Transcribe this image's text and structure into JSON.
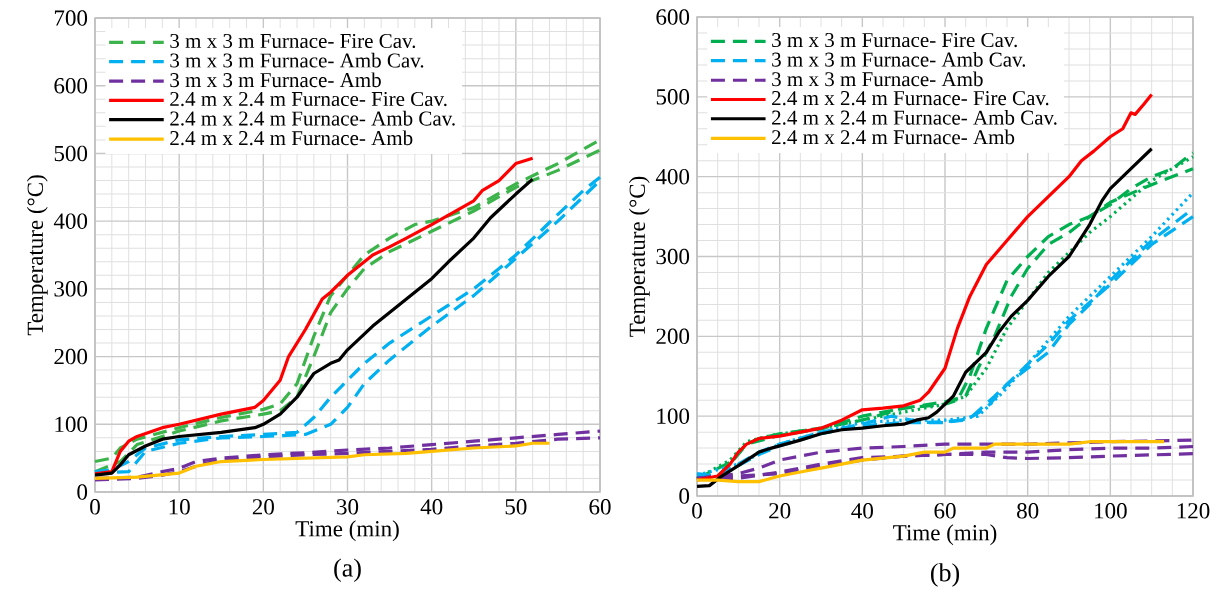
{
  "chart_data": [
    {
      "type": "line",
      "xlabel": "Time (min)",
      "ylabel": "Temperature (°C)",
      "xlim": [
        0,
        60
      ],
      "ylim": [
        0,
        700
      ],
      "xticks": [
        0,
        10,
        20,
        30,
        40,
        50,
        60
      ],
      "yticks": [
        0,
        100,
        200,
        300,
        400,
        500,
        600,
        700
      ],
      "grid": true,
      "legend": "top left",
      "annotations": [
        "(a)"
      ],
      "series": [
        {
          "name": "3 m x 3 m Furnace- Fire Cav.",
          "color": "#3cb44b",
          "line_style": "dashed",
          "x": [
            0,
            2,
            3,
            5,
            10,
            15,
            20,
            22,
            24,
            26,
            28,
            30,
            32,
            35,
            38,
            40,
            45,
            50,
            55,
            60
          ],
          "values": [
            45,
            50,
            65,
            78,
            95,
            110,
            122,
            130,
            160,
            230,
            290,
            320,
            350,
            375,
            395,
            400,
            420,
            455,
            485,
            520
          ]
        },
        {
          "color": "#3cb44b",
          "line_style": "dashed",
          "x": [
            0,
            3,
            5,
            10,
            15,
            20,
            22,
            24,
            26,
            28,
            30,
            32,
            35,
            40,
            45,
            50,
            55,
            60
          ],
          "values": [
            30,
            45,
            70,
            90,
            105,
            115,
            120,
            140,
            200,
            265,
            300,
            330,
            355,
            385,
            415,
            450,
            475,
            505
          ]
        },
        {
          "name": "3 m x 3 m Furnace- Amb Cav.",
          "color": "#00b0f0",
          "line_style": "dashed",
          "x": [
            0,
            2,
            4,
            6,
            10,
            15,
            20,
            24,
            26,
            28,
            30,
            32,
            35,
            40,
            45,
            50,
            55,
            58,
            60
          ],
          "values": [
            30,
            33,
            45,
            65,
            77,
            82,
            85,
            88,
            110,
            140,
            165,
            190,
            220,
            260,
            300,
            350,
            410,
            445,
            465
          ]
        },
        {
          "color": "#00b0f0",
          "line_style": "dashed",
          "x": [
            0,
            4,
            6,
            10,
            15,
            20,
            25,
            28,
            30,
            32,
            35,
            40,
            45,
            50,
            55,
            60
          ],
          "values": [
            28,
            30,
            60,
            72,
            80,
            82,
            85,
            100,
            125,
            160,
            195,
            245,
            290,
            345,
            400,
            460
          ]
        },
        {
          "name": "3 m x 3 m Furnace- Amb",
          "color": "#7030a0",
          "line_style": "dashed",
          "x": [
            0,
            5,
            8,
            10,
            12,
            15,
            20,
            25,
            30,
            35,
            40,
            45,
            50,
            55,
            60
          ],
          "values": [
            20,
            22,
            30,
            35,
            45,
            50,
            55,
            58,
            62,
            65,
            70,
            75,
            80,
            85,
            90
          ]
        },
        {
          "color": "#7030a0",
          "line_style": "dashed",
          "x": [
            0,
            5,
            8,
            10,
            13,
            15,
            20,
            25,
            30,
            35,
            40,
            45,
            50,
            55,
            60
          ],
          "values": [
            18,
            20,
            25,
            30,
            42,
            47,
            52,
            55,
            57,
            60,
            63,
            68,
            72,
            78,
            80
          ]
        },
        {
          "name": "2.4 m x 2.4 m Furnace- Fire Cav.",
          "color": "#ff0000",
          "line_style": "solid",
          "x": [
            0,
            2,
            3,
            4,
            5,
            8,
            10,
            15,
            19,
            20,
            22,
            23,
            25,
            27,
            28,
            30,
            33,
            35,
            37,
            40,
            45,
            46,
            48,
            50,
            52
          ],
          "values": [
            27,
            30,
            60,
            75,
            82,
            95,
            100,
            115,
            125,
            135,
            165,
            200,
            240,
            285,
            295,
            320,
            350,
            362,
            375,
            395,
            430,
            445,
            460,
            485,
            493
          ]
        },
        {
          "name": "2.4 m x 2.4 m Furnace- Amb Cav.",
          "color": "#000000",
          "line_style": "solid",
          "x": [
            0,
            2,
            3,
            4,
            6,
            8,
            10,
            15,
            19,
            20,
            22,
            24,
            26,
            28,
            29,
            30,
            33,
            35,
            37,
            40,
            42,
            45,
            47,
            50,
            52
          ],
          "values": [
            25,
            28,
            40,
            55,
            68,
            78,
            82,
            88,
            95,
            100,
            115,
            140,
            175,
            190,
            195,
            210,
            245,
            265,
            285,
            315,
            340,
            375,
            405,
            440,
            462
          ]
        },
        {
          "name": "2.4 m x 2.4 m Furnace- Amb",
          "color": "#ffc000",
          "line_style": "solid",
          "x": [
            0,
            5,
            10,
            12,
            15,
            20,
            25,
            30,
            32,
            37,
            40,
            45,
            50,
            52,
            54
          ],
          "values": [
            20,
            22,
            28,
            38,
            45,
            48,
            50,
            52,
            55,
            57,
            60,
            65,
            68,
            72,
            72
          ]
        }
      ]
    },
    {
      "type": "line",
      "xlabel": "Time (min)",
      "ylabel": "Temperature (°C)",
      "xlim": [
        0,
        120
      ],
      "ylim": [
        0,
        600
      ],
      "xticks": [
        0,
        20,
        40,
        60,
        80,
        100,
        120
      ],
      "yticks": [
        0,
        100,
        200,
        300,
        400,
        500,
        600
      ],
      "grid": true,
      "legend": "top left",
      "annotations": [
        "(b)"
      ],
      "series": [
        {
          "name": "3 m x 3 m Furnace- Fire Cav.",
          "color": "#00b050",
          "line_style": "dashed",
          "x": [
            0,
            5,
            8,
            12,
            15,
            20,
            30,
            40,
            50,
            60,
            63,
            66,
            70,
            75,
            80,
            85,
            90,
            95,
            100,
            105,
            110,
            115,
            120
          ],
          "values": [
            20,
            25,
            40,
            65,
            72,
            78,
            85,
            95,
            110,
            115,
            120,
            150,
            210,
            270,
            300,
            325,
            340,
            350,
            365,
            385,
            400,
            410,
            430
          ]
        },
        {
          "color": "#00b050",
          "line_style": "dashed",
          "x": [
            0,
            8,
            12,
            20,
            30,
            40,
            50,
            60,
            65,
            68,
            72,
            76,
            80,
            85,
            90,
            95,
            100,
            110,
            120
          ],
          "values": [
            22,
            42,
            65,
            76,
            84,
            100,
            110,
            118,
            125,
            160,
            200,
            250,
            285,
            315,
            330,
            350,
            368,
            390,
            410
          ]
        },
        {
          "color": "#00b050",
          "line_style": "dotted",
          "x": [
            0,
            8,
            12,
            18,
            30,
            45,
            60,
            65,
            70,
            75,
            80,
            85,
            90,
            95,
            100,
            110,
            120
          ],
          "values": [
            22,
            45,
            68,
            76,
            85,
            100,
            115,
            125,
            160,
            210,
            245,
            280,
            305,
            330,
            350,
            395,
            425
          ]
        },
        {
          "name": "3 m x 3 m Furnace- Amb Cav.",
          "color": "#00b0f0",
          "line_style": "dashed",
          "x": [
            0,
            5,
            10,
            15,
            20,
            30,
            40,
            47,
            55,
            60,
            65,
            70,
            75,
            80,
            85,
            90,
            95,
            100,
            105,
            110,
            120
          ],
          "values": [
            28,
            25,
            40,
            55,
            65,
            80,
            90,
            100,
            92,
            93,
            95,
            110,
            140,
            160,
            180,
            215,
            240,
            270,
            295,
            320,
            360
          ]
        },
        {
          "color": "#00b0f0",
          "line_style": "dashed",
          "x": [
            0,
            5,
            10,
            15,
            20,
            30,
            40,
            50,
            60,
            66,
            72,
            78,
            85,
            90,
            100,
            110,
            120
          ],
          "values": [
            25,
            24,
            38,
            52,
            63,
            78,
            88,
            92,
            92,
            97,
            125,
            155,
            190,
            220,
            265,
            315,
            350
          ]
        },
        {
          "color": "#00b0f0",
          "line_style": "dotted",
          "x": [
            0,
            10,
            20,
            30,
            40,
            50,
            60,
            68,
            74,
            80,
            90,
            100,
            105,
            110,
            120
          ],
          "values": [
            26,
            40,
            65,
            80,
            92,
            95,
            95,
            100,
            130,
            165,
            225,
            275,
            300,
            325,
            380
          ]
        },
        {
          "name": "3 m x 3 m Furnace- Amb",
          "color": "#7030a0",
          "line_style": "dashed",
          "x": [
            0,
            5,
            10,
            15,
            20,
            30,
            40,
            50,
            60,
            80,
            100,
            120
          ],
          "values": [
            22,
            25,
            28,
            35,
            45,
            55,
            60,
            62,
            65,
            65,
            68,
            70
          ]
        },
        {
          "color": "#7030a0",
          "line_style": "dashed",
          "x": [
            0,
            5,
            10,
            20,
            30,
            40,
            50,
            60,
            70,
            80,
            90,
            100,
            110,
            120
          ],
          "values": [
            22,
            25,
            25,
            28,
            37,
            45,
            50,
            52,
            55,
            55,
            58,
            60,
            60,
            62
          ]
        },
        {
          "color": "#7030a0",
          "line_style": "dashed",
          "x": [
            0,
            10,
            20,
            30,
            40,
            50,
            60,
            70,
            75,
            80,
            90,
            100,
            120
          ],
          "values": [
            22,
            22,
            30,
            40,
            48,
            50,
            52,
            52,
            48,
            47,
            48,
            50,
            53
          ]
        },
        {
          "name": "2.4 m x 2.4 m Furnace- Fire Cav.",
          "color": "#ff0000",
          "line_style": "solid",
          "x": [
            0,
            5,
            8,
            10,
            12,
            15,
            20,
            30,
            35,
            40,
            45,
            50,
            54,
            56,
            60,
            63,
            66,
            70,
            75,
            80,
            85,
            90,
            93,
            96,
            100,
            103,
            105,
            106,
            108,
            110
          ],
          "values": [
            20,
            25,
            40,
            55,
            65,
            72,
            75,
            85,
            95,
            108,
            110,
            113,
            120,
            130,
            160,
            210,
            250,
            290,
            320,
            350,
            375,
            400,
            420,
            432,
            450,
            460,
            480,
            478,
            490,
            503
          ]
        },
        {
          "name": "2.4 m x 2.4 m Furnace- Amb Cav.",
          "color": "#000000",
          "line_style": "solid",
          "x": [
            0,
            3,
            6,
            10,
            15,
            18,
            25,
            30,
            35,
            40,
            45,
            50,
            53,
            56,
            58,
            62,
            65,
            68,
            70,
            73,
            76,
            80,
            85,
            90,
            95,
            98,
            100,
            105,
            110
          ],
          "values": [
            12,
            13,
            25,
            38,
            55,
            60,
            70,
            78,
            83,
            85,
            88,
            90,
            95,
            98,
            105,
            125,
            155,
            170,
            180,
            205,
            225,
            245,
            275,
            300,
            340,
            370,
            385,
            410,
            435
          ]
        },
        {
          "name": "2.4 m x 2.4 m Furnace- Amb",
          "color": "#ffc000",
          "line_style": "solid",
          "x": [
            0,
            5,
            10,
            15,
            20,
            25,
            30,
            40,
            50,
            55,
            60,
            62,
            70,
            72,
            90,
            95,
            113
          ],
          "values": [
            20,
            20,
            18,
            18,
            25,
            30,
            35,
            45,
            50,
            55,
            55,
            60,
            60,
            65,
            65,
            68,
            68
          ]
        }
      ]
    }
  ]
}
